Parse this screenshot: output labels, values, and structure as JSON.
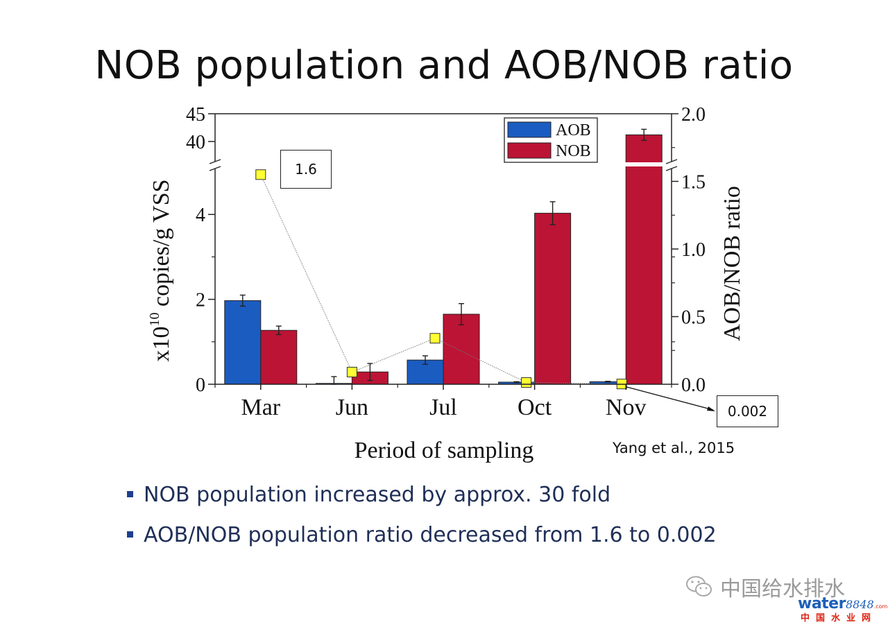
{
  "slide": {
    "title": "NOB population and AOB/NOB ratio",
    "citation": "Yang et al., 2015",
    "bullets": [
      "NOB population increased by approx. 30 fold",
      "AOB/NOB population ratio decreased from 1.6 to 0.002"
    ],
    "callouts": {
      "start": "1.6",
      "end": "0.002"
    },
    "watermark": {
      "account": "中国给水排水",
      "logo_word": "water",
      "logo_number": "8848",
      "logo_domain": ".com",
      "logo_cn": "中国水业网"
    }
  },
  "colors": {
    "aob": "#1b5cc1",
    "nob": "#bc1434",
    "ratio_marker": "#ffff33",
    "bullet_text": "#1f2f57"
  },
  "chart_data": {
    "type": "bar",
    "categories": [
      "Mar",
      "Jun",
      "Jul",
      "Oct",
      "Nov"
    ],
    "xlabel": "Period of sampling",
    "ylabel_left": {
      "prefix": "x10",
      "exponent": "10",
      "suffix": " copies/g VSS"
    },
    "ylabel_right": "AOB/NOB ratio",
    "left_axis": {
      "broken": true,
      "lower_range": [
        0,
        5
      ],
      "upper_range": [
        37,
        45
      ],
      "lower_ticks": [
        "0",
        "2",
        "4"
      ],
      "upper_ticks": [
        "40",
        "45"
      ]
    },
    "right_axis": {
      "range": [
        0,
        2.0
      ],
      "break_near": 1.6,
      "ticks": [
        "0.0",
        "0.5",
        "1.0",
        "1.5",
        "2.0"
      ]
    },
    "legend": {
      "position": "top-right",
      "entries": [
        "AOB",
        "NOB"
      ]
    },
    "series": [
      {
        "name": "AOB",
        "values": [
          1.97,
          0.02,
          0.57,
          0.05,
          0.06
        ],
        "errors": [
          0.13,
          0.16,
          0.1,
          0.01,
          0.01
        ]
      },
      {
        "name": "NOB",
        "values": [
          1.27,
          0.29,
          1.65,
          4.03,
          41.2
        ],
        "errors": [
          0.1,
          0.2,
          0.25,
          0.27,
          1.0
        ]
      }
    ],
    "ratio_series": {
      "values": [
        1.55,
        0.09,
        0.34,
        0.013,
        0.002
      ]
    }
  }
}
